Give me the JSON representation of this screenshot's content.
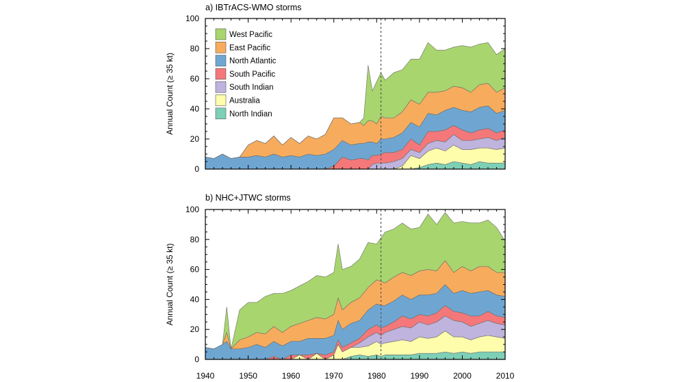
{
  "chart_data": [
    {
      "type": "area",
      "stacked": true,
      "title": "a) IBTrACS-WMO storms",
      "xlabel": "",
      "ylabel": "Annual Count (≥ 35 kt)",
      "xlim": [
        1940,
        2010
      ],
      "ylim": [
        0,
        100
      ],
      "yticks": [
        "0",
        "20",
        "40",
        "60",
        "80",
        "100"
      ],
      "reference_line_x": 1981,
      "grid": false,
      "legend_position": "top-left",
      "x": [
        1940,
        1942,
        1944,
        1946,
        1948,
        1950,
        1952,
        1954,
        1956,
        1958,
        1960,
        1962,
        1964,
        1966,
        1968,
        1970,
        1972,
        1974,
        1976,
        1977,
        1978,
        1979,
        1980,
        1981,
        1982,
        1984,
        1986,
        1988,
        1990,
        1992,
        1994,
        1996,
        1998,
        2000,
        2002,
        2004,
        2006,
        2008,
        2010
      ],
      "series": [
        {
          "name": "North Indian",
          "color": "#7dcfb6",
          "values": [
            0,
            0,
            0,
            0,
            0,
            0,
            0,
            0,
            0,
            0,
            0,
            0,
            0,
            0,
            0,
            0,
            0,
            0,
            0,
            0,
            0,
            0,
            0,
            0,
            0,
            0,
            0,
            0,
            1,
            3,
            4,
            3,
            5,
            4,
            3,
            5,
            4,
            4,
            4
          ]
        },
        {
          "name": "Australia",
          "color": "#fdfdac",
          "values": [
            0,
            0,
            0,
            0,
            0,
            0,
            0,
            0,
            0,
            0,
            0,
            0,
            0,
            0,
            0,
            0,
            0,
            0,
            0,
            0,
            0,
            0,
            0,
            0,
            0,
            0,
            2,
            9,
            6,
            9,
            10,
            9,
            11,
            9,
            10,
            9,
            10,
            9,
            10
          ]
        },
        {
          "name": "South Indian",
          "color": "#bfb4dd",
          "values": [
            0,
            0,
            0,
            0,
            0,
            0,
            0,
            0,
            0,
            0,
            0,
            0,
            0,
            0,
            0,
            0,
            0,
            0,
            0,
            0,
            0,
            3,
            4,
            4,
            4,
            5,
            5,
            4,
            4,
            5,
            5,
            6,
            7,
            6,
            6,
            6,
            7,
            6,
            7
          ]
        },
        {
          "name": "South Pacific",
          "color": "#f4787a",
          "values": [
            0,
            0,
            0,
            0,
            0,
            0,
            0,
            0,
            0,
            0,
            0,
            0,
            0,
            0,
            0,
            2,
            8,
            6,
            7,
            7,
            6,
            6,
            5,
            6,
            7,
            6,
            6,
            7,
            5,
            8,
            6,
            8,
            6,
            7,
            5,
            6,
            6,
            5,
            5
          ]
        },
        {
          "name": "North Atlantic",
          "color": "#6fa6d1",
          "values": [
            8,
            7,
            10,
            7,
            8,
            8,
            9,
            8,
            10,
            8,
            9,
            8,
            10,
            9,
            10,
            11,
            11,
            10,
            10,
            10,
            12,
            9,
            8,
            10,
            9,
            10,
            11,
            11,
            12,
            12,
            11,
            13,
            12,
            13,
            14,
            15,
            15,
            13,
            13
          ]
        },
        {
          "name": "East Pacific",
          "color": "#f7ac5d",
          "values": [
            0,
            0,
            0,
            0,
            0,
            8,
            10,
            9,
            12,
            8,
            12,
            9,
            12,
            11,
            13,
            21,
            15,
            14,
            14,
            12,
            14,
            14,
            13,
            15,
            14,
            13,
            14,
            15,
            15,
            14,
            15,
            13,
            14,
            15,
            13,
            15,
            15,
            14,
            15
          ]
        },
        {
          "name": "West Pacific",
          "color": "#a8d56e",
          "values": [
            0,
            0,
            0,
            0,
            0,
            0,
            0,
            0,
            0,
            0,
            0,
            0,
            0,
            0,
            0,
            0,
            0,
            0,
            0,
            5,
            37,
            20,
            28,
            29,
            25,
            30,
            28,
            27,
            30,
            33,
            28,
            27,
            26,
            28,
            30,
            27,
            27,
            25,
            26
          ]
        }
      ]
    },
    {
      "type": "area",
      "stacked": true,
      "title": "b) NHC+JTWC storms",
      "xlabel": "",
      "ylabel": "Annual Count (≥ 35 kt)",
      "xlim": [
        1940,
        2010
      ],
      "ylim": [
        0,
        100
      ],
      "xticks": [
        "1940",
        "1950",
        "1960",
        "1970",
        "1980",
        "1990",
        "2000",
        "2010"
      ],
      "yticks": [
        "0",
        "20",
        "40",
        "60",
        "80",
        "100"
      ],
      "reference_line_x": 1981,
      "grid": false,
      "x": [
        1940,
        1942,
        1944,
        1945,
        1946,
        1948,
        1950,
        1952,
        1954,
        1956,
        1958,
        1960,
        1962,
        1964,
        1966,
        1968,
        1970,
        1971,
        1972,
        1974,
        1976,
        1978,
        1980,
        1981,
        1982,
        1984,
        1986,
        1988,
        1990,
        1992,
        1994,
        1996,
        1998,
        2000,
        2002,
        2004,
        2006,
        2008,
        2010
      ],
      "series": [
        {
          "name": "North Indian",
          "values": [
            0,
            0,
            0,
            0,
            0,
            0,
            0,
            0,
            0,
            0,
            0,
            0,
            0,
            0,
            0,
            0,
            0,
            0,
            0,
            2,
            3,
            2,
            3,
            2,
            3,
            3,
            3,
            3,
            4,
            4,
            4,
            5,
            4,
            5,
            4,
            5,
            5,
            5,
            5
          ]
        },
        {
          "name": "Australia",
          "values": [
            0,
            0,
            0,
            0,
            0,
            0,
            0,
            0,
            0,
            0,
            0,
            0,
            3,
            0,
            4,
            0,
            3,
            10,
            5,
            6,
            5,
            7,
            9,
            8,
            8,
            9,
            10,
            9,
            11,
            10,
            11,
            14,
            11,
            10,
            9,
            10,
            11,
            10,
            9
          ]
        },
        {
          "name": "South Indian",
          "values": [
            0,
            0,
            0,
            0,
            0,
            0,
            0,
            0,
            0,
            0,
            0,
            0,
            0,
            0,
            0,
            0,
            0,
            0,
            0,
            0,
            3,
            6,
            6,
            6,
            7,
            8,
            9,
            9,
            10,
            9,
            10,
            10,
            11,
            10,
            9,
            9,
            10,
            9,
            9
          ]
        },
        {
          "name": "South Pacific",
          "values": [
            0,
            0,
            0,
            0,
            0,
            0,
            0,
            0,
            0,
            2,
            0,
            3,
            0,
            3,
            0,
            3,
            2,
            3,
            3,
            3,
            3,
            5,
            5,
            5,
            4,
            5,
            7,
            6,
            5,
            6,
            6,
            7,
            6,
            6,
            7,
            5,
            6,
            5,
            5
          ]
        },
        {
          "name": "North Atlantic",
          "values": [
            8,
            7,
            10,
            12,
            7,
            7,
            8,
            10,
            8,
            10,
            9,
            9,
            9,
            11,
            10,
            11,
            11,
            13,
            12,
            13,
            12,
            13,
            14,
            15,
            14,
            14,
            14,
            13,
            13,
            14,
            13,
            14,
            12,
            15,
            15,
            16,
            14,
            14,
            14
          ]
        },
        {
          "name": "East Pacific",
          "values": [
            0,
            0,
            0,
            6,
            0,
            6,
            7,
            8,
            9,
            10,
            9,
            10,
            12,
            12,
            14,
            13,
            14,
            15,
            13,
            14,
            15,
            15,
            16,
            16,
            15,
            16,
            15,
            16,
            16,
            17,
            15,
            16,
            14,
            16,
            15,
            17,
            16,
            15,
            16
          ]
        },
        {
          "name": "West Pacific",
          "values": [
            0,
            0,
            0,
            17,
            0,
            20,
            23,
            20,
            25,
            22,
            26,
            24,
            25,
            26,
            28,
            28,
            28,
            36,
            27,
            24,
            26,
            30,
            24,
            29,
            34,
            32,
            33,
            31,
            29,
            37,
            31,
            32,
            33,
            30,
            32,
            29,
            31,
            30,
            21
          ]
        }
      ]
    }
  ]
}
